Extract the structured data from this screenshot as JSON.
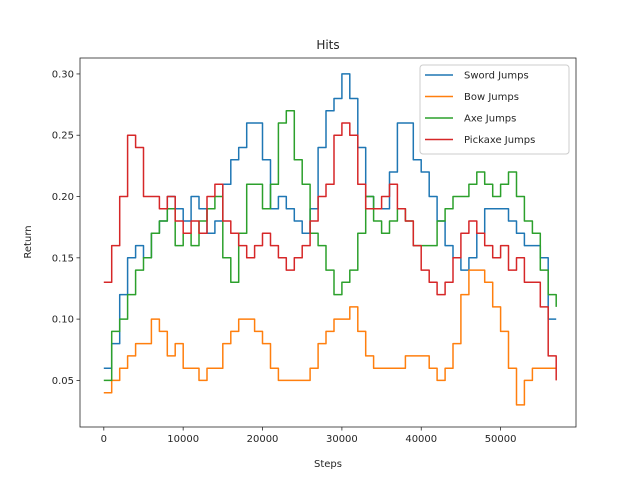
{
  "chart_data": {
    "type": "line",
    "title": "Hits",
    "xlabel": "Steps",
    "ylabel": "Return",
    "xlim": [
      -3000,
      59500
    ],
    "ylim": [
      0.012,
      0.313
    ],
    "xticks": [
      0,
      10000,
      20000,
      30000,
      40000,
      50000
    ],
    "yticks": [
      0.05,
      0.1,
      0.15,
      0.2,
      0.25,
      0.3
    ],
    "grid": false,
    "legend_position": "top-right",
    "series": [
      {
        "name": "Sword Jumps",
        "color": "#1f77b4",
        "points": [
          [
            0,
            0.06
          ],
          [
            1000,
            0.08
          ],
          [
            2000,
            0.12
          ],
          [
            3000,
            0.15
          ],
          [
            4000,
            0.16
          ],
          [
            5000,
            0.15
          ],
          [
            6000,
            0.17
          ],
          [
            7000,
            0.18
          ],
          [
            8000,
            0.2
          ],
          [
            9000,
            0.19
          ],
          [
            10000,
            0.18
          ],
          [
            11000,
            0.2
          ],
          [
            12000,
            0.19
          ],
          [
            13000,
            0.17
          ],
          [
            14000,
            0.18
          ],
          [
            15000,
            0.21
          ],
          [
            16000,
            0.23
          ],
          [
            17000,
            0.24
          ],
          [
            18000,
            0.26
          ],
          [
            19000,
            0.26
          ],
          [
            20000,
            0.23
          ],
          [
            21000,
            0.19
          ],
          [
            22000,
            0.2
          ],
          [
            23000,
            0.19
          ],
          [
            24000,
            0.18
          ],
          [
            25000,
            0.17
          ],
          [
            26000,
            0.19
          ],
          [
            27000,
            0.24
          ],
          [
            28000,
            0.27
          ],
          [
            29000,
            0.28
          ],
          [
            30000,
            0.3
          ],
          [
            31000,
            0.28
          ],
          [
            32000,
            0.24
          ],
          [
            33000,
            0.2
          ],
          [
            34000,
            0.19
          ],
          [
            35000,
            0.19
          ],
          [
            36000,
            0.22
          ],
          [
            37000,
            0.26
          ],
          [
            38000,
            0.26
          ],
          [
            39000,
            0.23
          ],
          [
            40000,
            0.22
          ],
          [
            41000,
            0.2
          ],
          [
            42000,
            0.18
          ],
          [
            43000,
            0.16
          ],
          [
            44000,
            0.15
          ],
          [
            45000,
            0.14
          ],
          [
            46000,
            0.15
          ],
          [
            47000,
            0.17
          ],
          [
            48000,
            0.19
          ],
          [
            49000,
            0.19
          ],
          [
            50000,
            0.19
          ],
          [
            51000,
            0.18
          ],
          [
            52000,
            0.17
          ],
          [
            53000,
            0.16
          ],
          [
            54000,
            0.16
          ],
          [
            55000,
            0.15
          ],
          [
            56000,
            0.1
          ],
          [
            57000,
            0.1
          ]
        ]
      },
      {
        "name": "Bow Jumps",
        "color": "#ff7f0e",
        "points": [
          [
            0,
            0.04
          ],
          [
            1000,
            0.05
          ],
          [
            2000,
            0.06
          ],
          [
            3000,
            0.07
          ],
          [
            4000,
            0.08
          ],
          [
            5000,
            0.08
          ],
          [
            6000,
            0.1
          ],
          [
            7000,
            0.09
          ],
          [
            8000,
            0.07
          ],
          [
            9000,
            0.08
          ],
          [
            10000,
            0.06
          ],
          [
            11000,
            0.06
          ],
          [
            12000,
            0.05
          ],
          [
            13000,
            0.06
          ],
          [
            14000,
            0.06
          ],
          [
            15000,
            0.08
          ],
          [
            16000,
            0.09
          ],
          [
            17000,
            0.1
          ],
          [
            18000,
            0.1
          ],
          [
            19000,
            0.09
          ],
          [
            20000,
            0.08
          ],
          [
            21000,
            0.06
          ],
          [
            22000,
            0.05
          ],
          [
            23000,
            0.05
          ],
          [
            24000,
            0.05
          ],
          [
            25000,
            0.05
          ],
          [
            26000,
            0.06
          ],
          [
            27000,
            0.08
          ],
          [
            28000,
            0.09
          ],
          [
            29000,
            0.1
          ],
          [
            30000,
            0.1
          ],
          [
            31000,
            0.11
          ],
          [
            32000,
            0.09
          ],
          [
            33000,
            0.07
          ],
          [
            34000,
            0.06
          ],
          [
            35000,
            0.06
          ],
          [
            36000,
            0.06
          ],
          [
            37000,
            0.06
          ],
          [
            38000,
            0.07
          ],
          [
            39000,
            0.07
          ],
          [
            40000,
            0.07
          ],
          [
            41000,
            0.06
          ],
          [
            42000,
            0.05
          ],
          [
            43000,
            0.06
          ],
          [
            44000,
            0.08
          ],
          [
            45000,
            0.12
          ],
          [
            46000,
            0.14
          ],
          [
            47000,
            0.14
          ],
          [
            48000,
            0.13
          ],
          [
            49000,
            0.11
          ],
          [
            50000,
            0.09
          ],
          [
            51000,
            0.06
          ],
          [
            52000,
            0.03
          ],
          [
            53000,
            0.05
          ],
          [
            54000,
            0.06
          ],
          [
            55000,
            0.06
          ],
          [
            56000,
            0.06
          ],
          [
            57000,
            0.06
          ]
        ]
      },
      {
        "name": "Axe Jumps",
        "color": "#2ca02c",
        "points": [
          [
            0,
            0.05
          ],
          [
            1000,
            0.09
          ],
          [
            2000,
            0.1
          ],
          [
            3000,
            0.12
          ],
          [
            4000,
            0.14
          ],
          [
            5000,
            0.15
          ],
          [
            6000,
            0.17
          ],
          [
            7000,
            0.18
          ],
          [
            8000,
            0.19
          ],
          [
            9000,
            0.16
          ],
          [
            10000,
            0.17
          ],
          [
            11000,
            0.16
          ],
          [
            12000,
            0.18
          ],
          [
            13000,
            0.19
          ],
          [
            14000,
            0.2
          ],
          [
            15000,
            0.15
          ],
          [
            16000,
            0.13
          ],
          [
            17000,
            0.17
          ],
          [
            18000,
            0.21
          ],
          [
            19000,
            0.21
          ],
          [
            20000,
            0.19
          ],
          [
            21000,
            0.21
          ],
          [
            22000,
            0.26
          ],
          [
            23000,
            0.27
          ],
          [
            24000,
            0.23
          ],
          [
            25000,
            0.21
          ],
          [
            26000,
            0.17
          ],
          [
            27000,
            0.16
          ],
          [
            28000,
            0.14
          ],
          [
            29000,
            0.12
          ],
          [
            30000,
            0.13
          ],
          [
            31000,
            0.14
          ],
          [
            32000,
            0.17
          ],
          [
            33000,
            0.2
          ],
          [
            34000,
            0.18
          ],
          [
            35000,
            0.17
          ],
          [
            36000,
            0.18
          ],
          [
            37000,
            0.19
          ],
          [
            38000,
            0.18
          ],
          [
            39000,
            0.16
          ],
          [
            40000,
            0.16
          ],
          [
            41000,
            0.16
          ],
          [
            42000,
            0.18
          ],
          [
            43000,
            0.19
          ],
          [
            44000,
            0.2
          ],
          [
            45000,
            0.2
          ],
          [
            46000,
            0.21
          ],
          [
            47000,
            0.22
          ],
          [
            48000,
            0.21
          ],
          [
            49000,
            0.2
          ],
          [
            50000,
            0.21
          ],
          [
            51000,
            0.22
          ],
          [
            52000,
            0.2
          ],
          [
            53000,
            0.18
          ],
          [
            54000,
            0.17
          ],
          [
            55000,
            0.14
          ],
          [
            56000,
            0.12
          ],
          [
            57000,
            0.11
          ]
        ]
      },
      {
        "name": "Pickaxe Jumps",
        "color": "#d62728",
        "points": [
          [
            0,
            0.13
          ],
          [
            1000,
            0.16
          ],
          [
            2000,
            0.2
          ],
          [
            3000,
            0.25
          ],
          [
            4000,
            0.24
          ],
          [
            5000,
            0.2
          ],
          [
            6000,
            0.2
          ],
          [
            7000,
            0.19
          ],
          [
            8000,
            0.2
          ],
          [
            9000,
            0.18
          ],
          [
            10000,
            0.17
          ],
          [
            11000,
            0.18
          ],
          [
            12000,
            0.17
          ],
          [
            13000,
            0.2
          ],
          [
            14000,
            0.21
          ],
          [
            15000,
            0.18
          ],
          [
            16000,
            0.17
          ],
          [
            17000,
            0.16
          ],
          [
            18000,
            0.15
          ],
          [
            19000,
            0.16
          ],
          [
            20000,
            0.17
          ],
          [
            21000,
            0.16
          ],
          [
            22000,
            0.15
          ],
          [
            23000,
            0.14
          ],
          [
            24000,
            0.15
          ],
          [
            25000,
            0.16
          ],
          [
            26000,
            0.18
          ],
          [
            27000,
            0.2
          ],
          [
            28000,
            0.21
          ],
          [
            29000,
            0.25
          ],
          [
            30000,
            0.26
          ],
          [
            31000,
            0.25
          ],
          [
            32000,
            0.21
          ],
          [
            33000,
            0.19
          ],
          [
            34000,
            0.19
          ],
          [
            35000,
            0.2
          ],
          [
            36000,
            0.21
          ],
          [
            37000,
            0.19
          ],
          [
            38000,
            0.18
          ],
          [
            39000,
            0.16
          ],
          [
            40000,
            0.14
          ],
          [
            41000,
            0.13
          ],
          [
            42000,
            0.12
          ],
          [
            43000,
            0.13
          ],
          [
            44000,
            0.15
          ],
          [
            45000,
            0.17
          ],
          [
            46000,
            0.18
          ],
          [
            47000,
            0.17
          ],
          [
            48000,
            0.16
          ],
          [
            49000,
            0.15
          ],
          [
            50000,
            0.16
          ],
          [
            51000,
            0.14
          ],
          [
            52000,
            0.15
          ],
          [
            53000,
            0.13
          ],
          [
            54000,
            0.13
          ],
          [
            55000,
            0.11
          ],
          [
            56000,
            0.07
          ],
          [
            57000,
            0.05
          ]
        ]
      }
    ]
  }
}
